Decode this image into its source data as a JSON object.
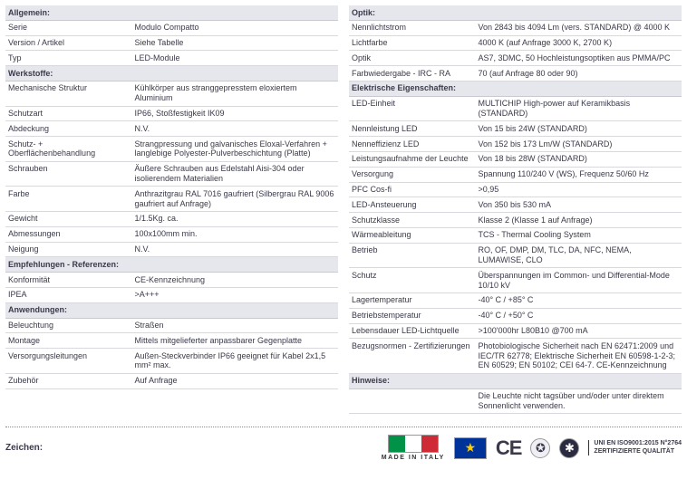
{
  "left": {
    "sections": [
      {
        "header": "Allgemein:",
        "rows": [
          [
            "Serie",
            "Modulo Compatto"
          ],
          [
            "Version / Artikel",
            "Siehe Tabelle"
          ],
          [
            "Typ",
            "LED-Module"
          ]
        ]
      },
      {
        "header": "Werkstoffe:",
        "rows": [
          [
            "Mechanische Struktur",
            "Kühlkörper aus stranggepresstem eloxiertem Aluminium"
          ],
          [
            "Schutzart",
            "IP66, Stoßfestigkeit IK09"
          ],
          [
            "Abdeckung",
            "N.V."
          ],
          [
            "Schutz- + Oberflächenbehandlung",
            "Strangpressung und galvanisches Eloxal-Verfahren + langlebige Polyester-Pulverbeschichtung (Platte)"
          ],
          [
            "Schrauben",
            "Äußere Schrauben aus Edelstahl Aisi-304 oder isolierendem Materialien"
          ],
          [
            "Farbe",
            "Anthrazitgrau RAL 7016 gaufriert (Silbergrau RAL 9006 gaufriert auf Anfrage)"
          ],
          [
            "Gewicht",
            "1/1.5Kg. ca."
          ],
          [
            "Abmessungen",
            "100x100mm min."
          ],
          [
            "Neigung",
            "N.V."
          ]
        ]
      },
      {
        "header": "Empfehlungen - Referenzen:",
        "rows": [
          [
            "Konformität",
            "CE-Kennzeichnung"
          ],
          [
            "IPEA",
            ">A+++"
          ]
        ]
      },
      {
        "header": "Anwendungen:",
        "rows": [
          [
            "Beleuchtung",
            "Straßen"
          ],
          [
            "Montage",
            "Mittels mitgelieferter anpassbarer Gegenplatte"
          ],
          [
            "Versorgungsleitungen",
            "Außen-Steckverbinder IP66 geeignet für Kabel 2x1,5 mm² max."
          ],
          [
            "Zubehör",
            "Auf Anfrage"
          ]
        ]
      }
    ]
  },
  "right": {
    "sections": [
      {
        "header": "Optik:",
        "rows": [
          [
            "Nennlichtstrom",
            "Von 2843 bis 4094 Lm (vers. STANDARD) @ 4000 K"
          ],
          [
            "Lichtfarbe",
            "4000 K (auf Anfrage 3000 K, 2700 K)"
          ],
          [
            "Optik",
            "AS7, 3DMC, 50\nHochleistungsoptiken aus PMMA/PC"
          ],
          [
            "Farbwiedergabe - IRC - RA",
            "70 (auf Anfrage 80 oder 90)"
          ]
        ]
      },
      {
        "header": "Elektrische Eigenschaften:",
        "rows": [
          [
            "LED-Einheit",
            "MULTICHIP High-power auf Keramikbasis (STANDARD)"
          ],
          [
            "Nennleistung LED",
            "Von 15 bis 24W (STANDARD)"
          ],
          [
            "Nenneffizienz LED",
            "Von 152 bis 173 Lm/W (STANDARD)"
          ],
          [
            "Leistungsaufnahme der Leuchte",
            "Von 18 bis 28W (STANDARD)"
          ],
          [
            "Versorgung",
            "Spannung 110/240 V (WS), Frequenz 50/60 Hz"
          ],
          [
            "PFC Cos-fi",
            ">0,95"
          ],
          [
            "LED-Ansteuerung",
            "Von 350 bis 530 mA"
          ],
          [
            "Schutzklasse",
            "Klasse 2 (Klasse 1 auf Anfrage)"
          ],
          [
            "Wärmeableitung",
            "TCS - Thermal Cooling System"
          ],
          [
            "Betrieb",
            "RO, OF, DMP, DM, TLC, DA, NFC, NEMA, LUMAWISE, CLO"
          ],
          [
            "Schutz",
            "Überspannungen im Common- und Differential-Mode 10/10 kV"
          ],
          [
            "Lagertemperatur",
            "-40° C / +85° C"
          ],
          [
            "Betriebstemperatur",
            "-40° C / +50° C"
          ],
          [
            "Lebensdauer LED-Lichtquelle",
            ">100'000hr L80B10 @700 mA"
          ],
          [
            "Bezugsnormen - Zertifizierungen",
            "Photobiologische Sicherheit nach EN 62471:2009 und IEC/TR 62778; Elektrische Sicherheit EN 60598-1-2-3; EN 60529; EN 50102; CEI 64-7. CE-Kennzeichnung"
          ]
        ]
      },
      {
        "header": "Hinweise:",
        "rows": [
          [
            "",
            "Die Leuchte nicht tagsüber und/oder unter direktem Sonnenlicht verwenden."
          ]
        ]
      }
    ]
  },
  "footer": {
    "label": "Zeichen:",
    "italy": "MADE IN ITALY",
    "qual1": "UNI EN ISO9001:2015 N°2764",
    "qual2": "ZERTIFIZIERTE QUALITÄT"
  }
}
